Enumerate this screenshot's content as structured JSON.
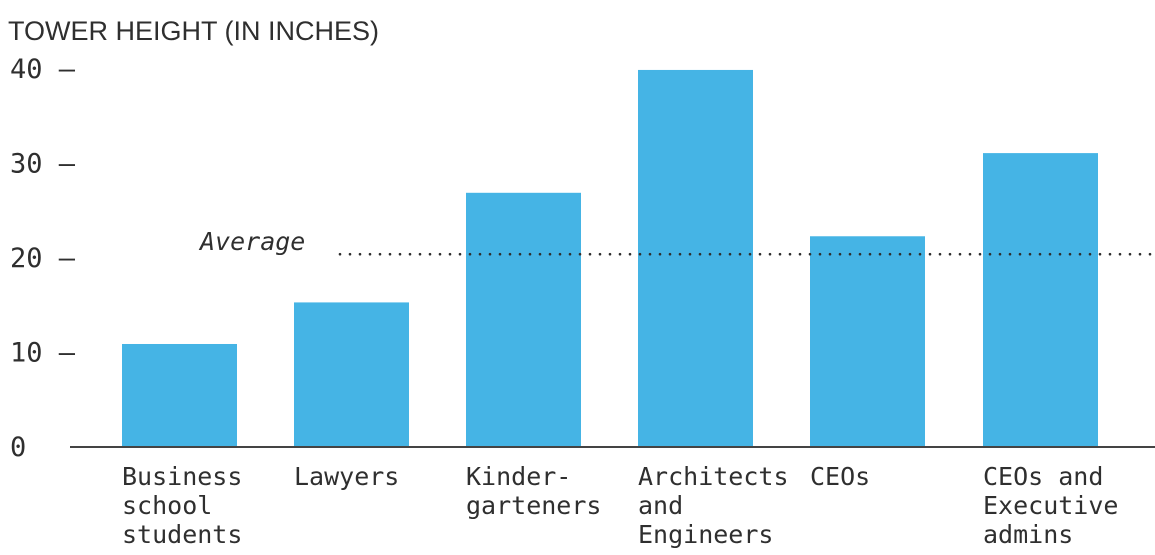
{
  "chart_data": {
    "type": "bar",
    "title": "TOWER HEIGHT (IN INCHES)",
    "xlabel": "",
    "ylabel": "",
    "ylim": [
      0,
      40
    ],
    "yticks": [
      0,
      10,
      20,
      30,
      40
    ],
    "ytick_labels": [
      "0",
      "10 –",
      "20 –",
      "30 –",
      "40 –"
    ],
    "categories": [
      [
        "Business",
        "school",
        "students"
      ],
      [
        "Lawyers"
      ],
      [
        "Kinder-",
        "garteners"
      ],
      [
        "Architects",
        "and",
        "Engineers"
      ],
      [
        "CEOs"
      ],
      [
        "CEOs and",
        "Executive",
        "admins"
      ]
    ],
    "values": [
      10.9,
      15.3,
      26.9,
      39.9,
      22.3,
      31.1
    ],
    "reference_line": {
      "label": "Average",
      "value": 20.4,
      "style": "dotted"
    },
    "grid": false,
    "legend": "none",
    "colors": {
      "bar": "#45b4e5",
      "text": "#2f2f2f",
      "axis": "#444444"
    }
  }
}
